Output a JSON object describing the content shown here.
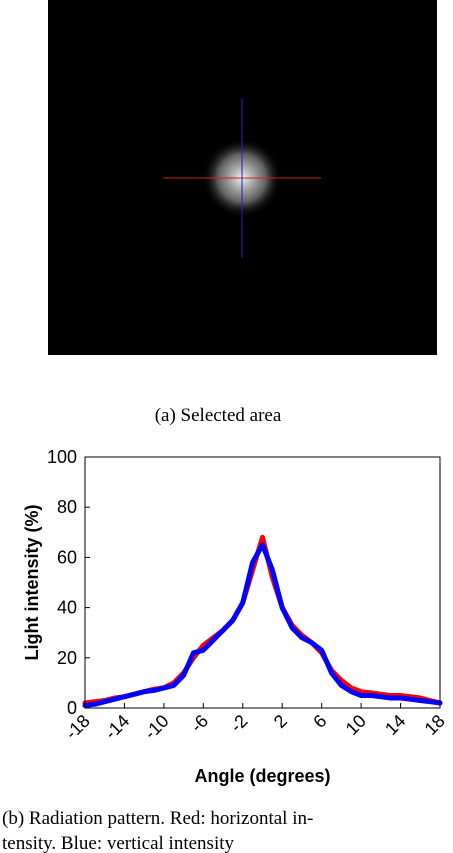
{
  "figure_a": {
    "caption": "(a) Selected area"
  },
  "chart_data": {
    "type": "line",
    "x_label": "Angle (degrees)",
    "y_label": "Light intensity (%)",
    "x": [
      -18,
      -17,
      -16,
      -15,
      -14,
      -13,
      -12,
      -11,
      -10,
      -9,
      -8,
      -7,
      -6,
      -5,
      -4,
      -3,
      -2,
      -1,
      0,
      1,
      2,
      3,
      4,
      5,
      6,
      7,
      8,
      9,
      10,
      11,
      12,
      13,
      14,
      15,
      16,
      17,
      18
    ],
    "series": [
      {
        "color": "#ff0000",
        "values": [
          2,
          2.5,
          3,
          4,
          4.5,
          5.5,
          6.5,
          7.5,
          8,
          10,
          14,
          20,
          25,
          28,
          31,
          35,
          42,
          55,
          68,
          52,
          40,
          33,
          29,
          26,
          22,
          15,
          11,
          8,
          6.5,
          6,
          5.5,
          5,
          5,
          4.5,
          4,
          3,
          2
        ]
      },
      {
        "color": "#0000ff",
        "values": [
          1,
          1.5,
          2.5,
          3.5,
          4.5,
          5.5,
          6.5,
          7,
          8,
          9,
          13,
          22,
          23,
          27,
          31,
          35,
          42,
          58,
          65,
          55,
          40,
          32,
          28,
          26,
          23,
          14,
          9,
          6.5,
          5,
          5,
          4.5,
          4,
          4,
          3.5,
          3,
          2.5,
          2
        ]
      }
    ],
    "xlim": [
      -18,
      18
    ],
    "xticks": [
      -18,
      -14,
      -10,
      -6,
      -2,
      2,
      6,
      10,
      14,
      18
    ],
    "ylim": [
      0,
      100
    ],
    "yticks": [
      0,
      20,
      40,
      60,
      80,
      100
    ]
  },
  "figure_b": {
    "caption_lines": [
      "(b) Radiation pattern. Red: horizontal in-",
      "tensity. Blue: vertical intensity"
    ]
  }
}
